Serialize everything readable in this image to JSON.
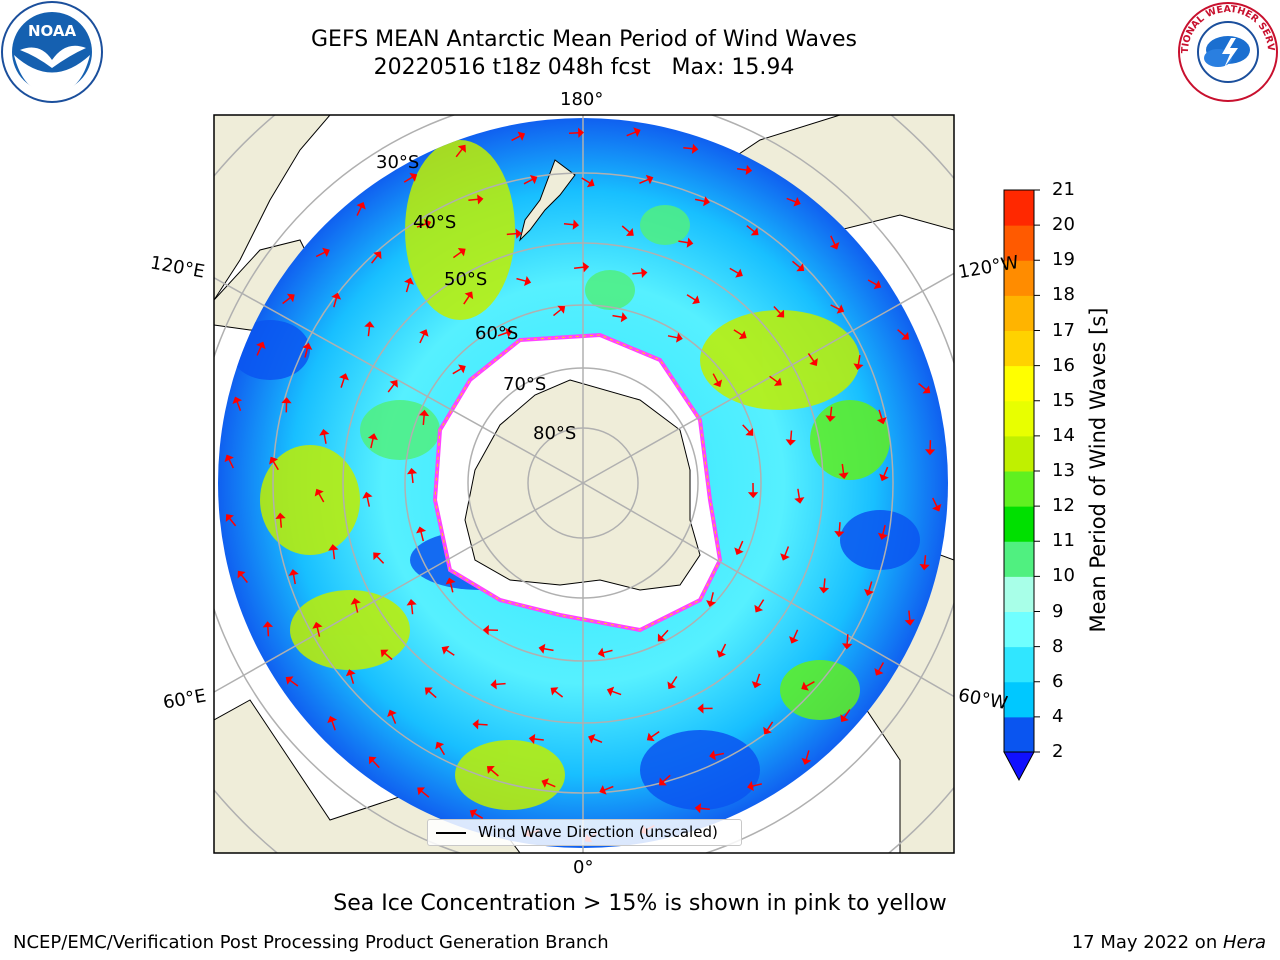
{
  "header": {
    "title_line1": "GEFS MEAN Antarctic Mean Period of Wind Waves",
    "title_line2": "20220516 t18z 048h fcst   Max: 15.94"
  },
  "logos": {
    "left": {
      "icon": "noaa-logo",
      "text": "NOAA"
    },
    "right": {
      "icon": "nws-logo",
      "text": "NATIONAL WEATHER SERVICE"
    }
  },
  "map": {
    "projection": "south-polar-stereographic",
    "longitude_labels": {
      "top": "180°",
      "bottom": "0°",
      "left_upper": "120°E",
      "left_lower": "60°E",
      "right_upper": "120°W",
      "right_lower": "60°W"
    },
    "latitude_labels": [
      "30°S",
      "40°S",
      "50°S",
      "60°S",
      "70°S",
      "80°S"
    ],
    "legend": "Wind Wave Direction (unscaled)",
    "vector_color": "#ff0000",
    "land_color": "#efedd9",
    "ice_edge_colors": [
      "#ff44ff",
      "#ffd700"
    ]
  },
  "colorbar": {
    "label": "Mean Period of Wind Waves [s]",
    "ticks": [
      "2",
      "4",
      "6",
      "8",
      "9",
      "10",
      "11",
      "12",
      "13",
      "14",
      "15",
      "16",
      "17",
      "18",
      "19",
      "20",
      "21"
    ],
    "colors": [
      "#0a55f0",
      "#00c8ff",
      "#30e6ff",
      "#70ffff",
      "#a8ffe8",
      "#50f080",
      "#00e000",
      "#60f020",
      "#c0f000",
      "#e8ff00",
      "#ffff00",
      "#ffd200",
      "#ffb400",
      "#ff8c00",
      "#ff5a00",
      "#ff2800",
      "#ff0000"
    ],
    "extend_color": "#1010ff"
  },
  "caption": "Sea Ice Concentration > 15% is shown in pink to yellow",
  "footer": {
    "left": "NCEP/EMC/Verification Post Processing Product Generation Branch",
    "date": "17 May 2022 on ",
    "machine": "Hera"
  }
}
